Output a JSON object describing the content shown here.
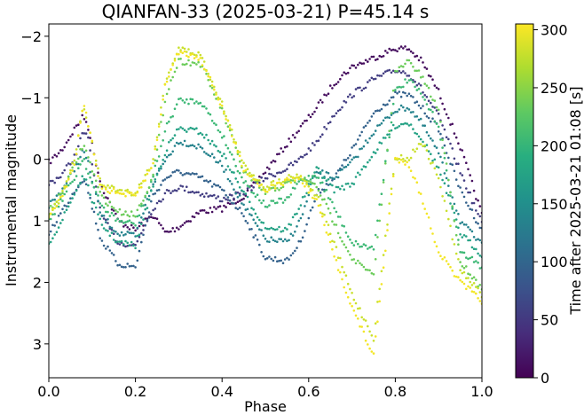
{
  "chart_data": {
    "type": "scatter",
    "title": "QIANFAN-33 (2025-03-21) P=45.14 s",
    "xlabel": "Phase",
    "ylabel": "Instrumental magnitude",
    "xlim": [
      0.0,
      1.0
    ],
    "ylim": [
      3.55,
      -2.2
    ],
    "y_inverted": true,
    "x_ticks": [
      "0.0",
      "0.2",
      "0.4",
      "0.6",
      "0.8",
      "1.0"
    ],
    "y_ticks": [
      "−2",
      "−1",
      "0",
      "1",
      "2",
      "3"
    ],
    "colorbar": {
      "label": "Time after 2025-03-21 01:08 [s]",
      "range": [
        0,
        305
      ],
      "ticks": [
        "0",
        "50",
        "100",
        "150",
        "200",
        "250",
        "300"
      ],
      "colormap": "viridis"
    },
    "grid": false,
    "series": [
      {
        "t": 10,
        "x": [
          0.0,
          0.03,
          0.06,
          0.08,
          0.09,
          0.12,
          0.16,
          0.2,
          0.24,
          0.27,
          0.3,
          0.35,
          0.4,
          0.45,
          0.5,
          0.55,
          0.58,
          0.62,
          0.66,
          0.7,
          0.75,
          0.8,
          0.83,
          0.86,
          0.9,
          0.95,
          1.0
        ],
        "y": [
          0.05,
          -0.15,
          -0.5,
          -0.7,
          -0.55,
          0.4,
          1.0,
          1.15,
          0.9,
          1.2,
          1.1,
          0.85,
          0.8,
          0.6,
          0.2,
          -0.25,
          -0.5,
          -0.85,
          -1.25,
          -1.5,
          -1.65,
          -1.8,
          -1.8,
          -1.6,
          -1.1,
          -0.2,
          0.9
        ]
      },
      {
        "t": 55,
        "x": [
          0.0,
          0.03,
          0.06,
          0.08,
          0.09,
          0.12,
          0.16,
          0.2,
          0.24,
          0.27,
          0.3,
          0.35,
          0.4,
          0.45,
          0.5,
          0.55,
          0.58,
          0.62,
          0.66,
          0.7,
          0.75,
          0.8,
          0.83,
          0.86,
          0.9,
          0.95,
          1.0
        ],
        "y": [
          0.4,
          0.25,
          -0.05,
          -0.45,
          -0.35,
          0.9,
          1.35,
          1.4,
          0.8,
          0.55,
          0.45,
          0.55,
          0.65,
          0.55,
          0.3,
          0.15,
          0.0,
          -0.3,
          -0.75,
          -1.05,
          -1.3,
          -1.45,
          -1.4,
          -1.15,
          -0.7,
          0.2,
          1.05
        ]
      },
      {
        "t": 95,
        "x": [
          0.0,
          0.03,
          0.06,
          0.08,
          0.09,
          0.12,
          0.16,
          0.2,
          0.24,
          0.27,
          0.3,
          0.35,
          0.4,
          0.45,
          0.5,
          0.55,
          0.58,
          0.62,
          0.66,
          0.7,
          0.75,
          0.8,
          0.83,
          0.86,
          0.9,
          0.95,
          1.0
        ],
        "y": [
          1.2,
          0.85,
          0.5,
          0.3,
          0.5,
          1.3,
          1.7,
          1.75,
          0.6,
          0.3,
          0.2,
          0.3,
          0.5,
          0.9,
          1.6,
          1.65,
          1.35,
          0.55,
          0.3,
          -0.15,
          -0.75,
          -1.05,
          -1.05,
          -0.85,
          -0.5,
          0.5,
          1.15
        ]
      },
      {
        "t": 135,
        "x": [
          0.0,
          0.03,
          0.06,
          0.08,
          0.09,
          0.12,
          0.16,
          0.2,
          0.24,
          0.27,
          0.3,
          0.35,
          0.4,
          0.45,
          0.5,
          0.55,
          0.58,
          0.62,
          0.66,
          0.7,
          0.75,
          0.8,
          0.83,
          0.86,
          0.9,
          0.95,
          1.0
        ],
        "y": [
          0.75,
          0.5,
          0.15,
          -0.15,
          0.05,
          0.9,
          1.2,
          1.25,
          0.4,
          0.0,
          -0.3,
          -0.2,
          0.1,
          0.75,
          1.3,
          1.35,
          1.0,
          0.2,
          0.3,
          0.05,
          -0.45,
          -0.8,
          -0.85,
          -0.6,
          -0.1,
          1.0,
          1.4
        ]
      },
      {
        "t": 175,
        "x": [
          0.0,
          0.03,
          0.06,
          0.08,
          0.09,
          0.12,
          0.16,
          0.2,
          0.24,
          0.27,
          0.3,
          0.35,
          0.4,
          0.45,
          0.5,
          0.55,
          0.58,
          0.62,
          0.66,
          0.7,
          0.75,
          0.8,
          0.83,
          0.86,
          0.9,
          0.95,
          1.0
        ],
        "y": [
          1.35,
          1.0,
          0.55,
          0.25,
          0.45,
          1.05,
          1.35,
          1.4,
          0.45,
          -0.15,
          -0.5,
          -0.45,
          -0.1,
          0.55,
          1.1,
          1.15,
          0.75,
          0.15,
          0.5,
          0.4,
          -0.1,
          -0.55,
          -0.6,
          -0.35,
          0.15,
          1.2,
          1.55
        ]
      },
      {
        "t": 205,
        "x": [
          0.0,
          0.03,
          0.06,
          0.08,
          0.09,
          0.12,
          0.16,
          0.2,
          0.24,
          0.27,
          0.3,
          0.35,
          0.4,
          0.45,
          0.5,
          0.55,
          0.58,
          0.62,
          0.66,
          0.7,
          0.75,
          0.8,
          0.83,
          0.86,
          0.9,
          0.95,
          1.0
        ],
        "y": [
          1.0,
          0.65,
          0.3,
          -0.05,
          0.2,
          0.75,
          1.0,
          1.05,
          0.3,
          -0.5,
          -0.95,
          -0.95,
          -0.4,
          0.35,
          0.75,
          0.65,
          0.35,
          0.25,
          0.8,
          1.35,
          1.45,
          -1.1,
          -1.3,
          -1.05,
          -0.55,
          1.5,
          1.75
        ]
      },
      {
        "t": 235,
        "x": [
          0.0,
          0.03,
          0.06,
          0.08,
          0.09,
          0.12,
          0.16,
          0.2,
          0.24,
          0.27,
          0.3,
          0.35,
          0.4,
          0.45,
          0.5,
          0.55,
          0.58,
          0.62,
          0.66,
          0.7,
          0.75,
          0.8,
          0.83,
          0.86,
          0.9,
          0.95,
          1.0
        ],
        "y": [
          0.85,
          0.55,
          0.1,
          -0.25,
          -0.05,
          0.6,
          0.85,
          0.9,
          0.3,
          -1.05,
          -1.6,
          -1.55,
          -0.8,
          0.2,
          0.55,
          0.4,
          0.3,
          0.45,
          1.05,
          1.6,
          1.9,
          -1.4,
          -1.6,
          -1.35,
          -0.8,
          1.65,
          2.1
        ]
      },
      {
        "t": 280,
        "x": [
          0.0,
          0.03,
          0.06,
          0.08,
          0.09,
          0.12,
          0.16,
          0.2,
          0.24,
          0.27,
          0.3,
          0.35,
          0.4,
          0.45,
          0.5,
          0.55,
          0.58,
          0.62,
          0.66,
          0.7,
          0.75,
          0.8,
          0.83,
          0.86,
          0.9,
          0.95,
          1.0
        ],
        "y": [
          0.9,
          0.6,
          0.0,
          -0.9,
          -0.6,
          0.4,
          0.5,
          0.55,
          0.05,
          -1.3,
          -1.8,
          -1.7,
          -0.9,
          0.1,
          0.45,
          0.3,
          0.25,
          0.6,
          1.4,
          2.2,
          2.9,
          -0.05,
          0.0,
          -0.3,
          0.3,
          1.8,
          2.2
        ]
      },
      {
        "t": 300,
        "x": [
          0.0,
          0.03,
          0.06,
          0.08,
          0.09,
          0.12,
          0.16,
          0.2,
          0.24,
          0.27,
          0.3,
          0.35,
          0.4,
          0.45,
          0.5,
          0.55,
          0.58,
          0.62,
          0.66,
          0.7,
          0.75,
          0.8,
          0.83,
          0.86,
          0.9,
          0.95,
          1.0
        ],
        "y": [
          0.9,
          0.6,
          0.05,
          -0.9,
          -0.6,
          0.45,
          0.55,
          0.6,
          0.1,
          -1.25,
          -1.75,
          -1.65,
          -0.85,
          0.15,
          0.5,
          0.35,
          0.3,
          0.7,
          1.6,
          2.4,
          3.2,
          0.0,
          0.05,
          0.6,
          1.5,
          2.0,
          2.3
        ]
      }
    ]
  }
}
